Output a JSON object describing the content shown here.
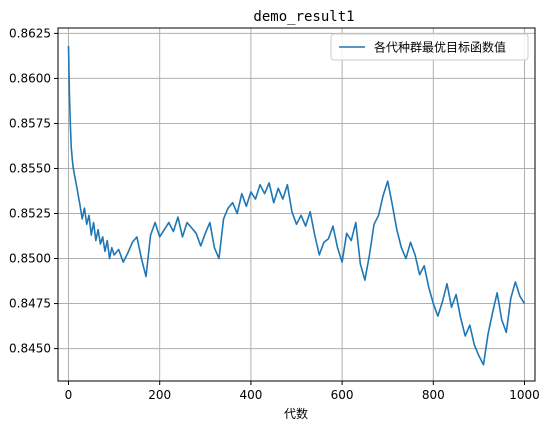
{
  "chart_data": {
    "type": "line",
    "title": "demo_result1",
    "xlabel": "代数",
    "ylabel": "",
    "xlim": [
      -23,
      1023
    ],
    "ylim": [
      0.8432,
      0.8628
    ],
    "xticks": [
      0,
      200,
      400,
      600,
      800,
      1000
    ],
    "yticks": [
      0.845,
      0.8475,
      0.85,
      0.8525,
      0.855,
      0.8575,
      0.86,
      0.8625
    ],
    "xtick_labels": [
      "0",
      "200",
      "400",
      "600",
      "800",
      "1000"
    ],
    "ytick_labels": [
      "0.8450",
      "0.8475",
      "0.8500",
      "0.8525",
      "0.8550",
      "0.8575",
      "0.8600",
      "0.8625"
    ],
    "grid": true,
    "legend_position": "top-right",
    "colors": {
      "series": "#1f77b4",
      "grid": "#b0b0b0",
      "axes": "#000000"
    },
    "series": [
      {
        "name": "各代种群最优目标函数值",
        "x": [
          0,
          2,
          4,
          6,
          8,
          10,
          12,
          15,
          18,
          20,
          25,
          30,
          35,
          40,
          45,
          50,
          55,
          60,
          65,
          70,
          75,
          80,
          85,
          90,
          95,
          100,
          110,
          120,
          130,
          140,
          150,
          160,
          170,
          180,
          190,
          200,
          210,
          220,
          230,
          240,
          250,
          260,
          270,
          280,
          290,
          300,
          310,
          320,
          330,
          340,
          350,
          360,
          370,
          380,
          390,
          400,
          410,
          420,
          430,
          440,
          450,
          460,
          470,
          480,
          490,
          500,
          510,
          520,
          530,
          540,
          550,
          560,
          570,
          580,
          590,
          600,
          610,
          620,
          630,
          640,
          650,
          660,
          670,
          680,
          690,
          700,
          710,
          720,
          730,
          740,
          750,
          760,
          770,
          780,
          790,
          800,
          810,
          820,
          830,
          840,
          850,
          860,
          870,
          880,
          890,
          900,
          910,
          920,
          930,
          940,
          950,
          960,
          970,
          980,
          990,
          1000
        ],
        "y": [
          0.8618,
          0.8592,
          0.8575,
          0.8562,
          0.8556,
          0.8551,
          0.8548,
          0.8544,
          0.854,
          0.8537,
          0.853,
          0.8522,
          0.8528,
          0.8519,
          0.8524,
          0.8513,
          0.852,
          0.851,
          0.8516,
          0.8508,
          0.8512,
          0.8504,
          0.851,
          0.85,
          0.8506,
          0.8502,
          0.8505,
          0.8498,
          0.8503,
          0.8509,
          0.8512,
          0.85,
          0.849,
          0.8513,
          0.852,
          0.8512,
          0.8516,
          0.852,
          0.8515,
          0.8523,
          0.8512,
          0.852,
          0.8517,
          0.8514,
          0.8507,
          0.8514,
          0.852,
          0.8506,
          0.85,
          0.8522,
          0.8528,
          0.8531,
          0.8525,
          0.8536,
          0.8529,
          0.8537,
          0.8533,
          0.8541,
          0.8536,
          0.8542,
          0.8531,
          0.8539,
          0.8533,
          0.8541,
          0.8526,
          0.8519,
          0.8524,
          0.8518,
          0.8526,
          0.8513,
          0.8502,
          0.8509,
          0.8511,
          0.8518,
          0.8506,
          0.8498,
          0.8514,
          0.851,
          0.852,
          0.8497,
          0.8488,
          0.8502,
          0.8519,
          0.8524,
          0.8535,
          0.8543,
          0.853,
          0.8516,
          0.8506,
          0.85,
          0.8509,
          0.8502,
          0.8491,
          0.8496,
          0.8484,
          0.8475,
          0.8468,
          0.8476,
          0.8486,
          0.8473,
          0.848,
          0.8467,
          0.8457,
          0.8463,
          0.8452,
          0.8446,
          0.8441,
          0.8458,
          0.847,
          0.8481,
          0.8466,
          0.8459,
          0.8478,
          0.8487,
          0.8479,
          0.8475
        ]
      }
    ]
  }
}
